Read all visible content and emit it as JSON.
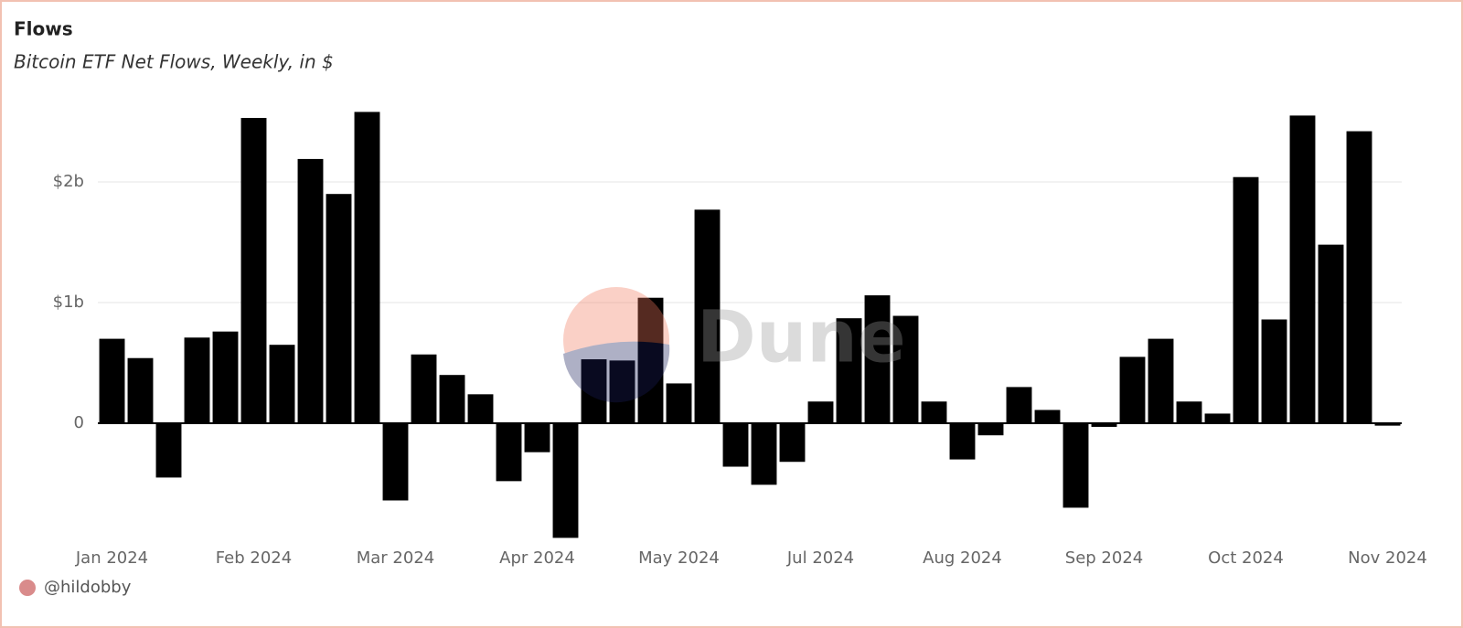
{
  "chart_data": {
    "type": "bar",
    "title": "Flows",
    "subtitle": "Bitcoin ETF Net Flows, Weekly, in $",
    "watermark": "Dune",
    "author": "@hildobby",
    "color": "#000000",
    "grid": true,
    "categories": [
      "Jan 2024",
      null,
      null,
      null,
      null,
      "Feb 2024",
      null,
      null,
      null,
      null,
      "Mar 2024",
      null,
      null,
      null,
      null,
      "Apr 2024",
      null,
      null,
      null,
      null,
      "May 2024",
      null,
      null,
      null,
      null,
      "Jul 2024",
      null,
      null,
      null,
      null,
      "Aug 2024",
      null,
      null,
      null,
      null,
      "Sep 2024",
      null,
      null,
      null,
      null,
      "Oct 2024",
      null,
      null,
      null,
      null,
      "Nov 2024"
    ],
    "values": [
      700000000,
      540000000,
      -450000000,
      710000000,
      760000000,
      2530000000,
      650000000,
      2190000000,
      1900000000,
      2580000000,
      -640000000,
      570000000,
      400000000,
      240000000,
      -480000000,
      -240000000,
      -950000000,
      530000000,
      520000000,
      1040000000,
      330000000,
      1770000000,
      -360000000,
      -510000000,
      -320000000,
      180000000,
      870000000,
      1060000000,
      890000000,
      180000000,
      -300000000,
      -100000000,
      300000000,
      110000000,
      -700000000,
      -30000000,
      550000000,
      700000000,
      180000000,
      80000000,
      2040000000,
      860000000,
      2550000000,
      1480000000,
      2420000000,
      -20000000
    ],
    "ylim": [
      -1000000000,
      2700000000
    ],
    "yticks": [
      0,
      {
        "value": 1000000000,
        "label": "$1b"
      },
      {
        "value": 2000000000,
        "label": "$2b"
      }
    ]
  }
}
